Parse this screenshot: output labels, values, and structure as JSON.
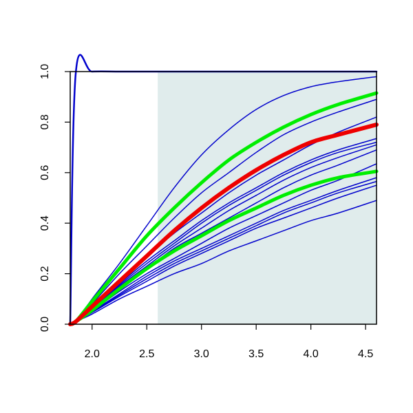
{
  "chart_data": {
    "type": "line",
    "title": "",
    "xlabel": "",
    "ylabel": "",
    "xlim": [
      1.8,
      4.6
    ],
    "ylim": [
      0.0,
      1.0
    ],
    "x_ticks": [
      "2.0",
      "2.5",
      "3.0",
      "3.5",
      "4.0",
      "4.5"
    ],
    "y_ticks": [
      "0.0",
      "0.2",
      "0.4",
      "0.6",
      "0.8",
      "1.0"
    ],
    "grid": false,
    "legend": "none",
    "shaded_region": {
      "x_from": 2.6,
      "x_to": 4.6,
      "color": "#e0ecec"
    },
    "x": [
      1.8,
      1.85,
      2.0,
      2.25,
      2.5,
      2.75,
      3.0,
      3.25,
      3.5,
      3.75,
      4.0,
      4.25,
      4.6
    ],
    "series": [
      {
        "color": "#0000cc",
        "width": 2.5,
        "values": [
          0.0,
          0.99,
          1.0,
          1.0,
          1.0,
          1.0,
          1.0,
          1.0,
          1.0,
          1.0,
          1.0,
          1.0,
          1.0
        ]
      },
      {
        "color": "#0000cc",
        "width": 1.5,
        "values": [
          0.0,
          0.01,
          0.1,
          0.24,
          0.39,
          0.54,
          0.67,
          0.77,
          0.85,
          0.905,
          0.94,
          0.96,
          0.98
        ]
      },
      {
        "color": "#0000cc",
        "width": 1.5,
        "values": [
          0.0,
          0.01,
          0.08,
          0.2,
          0.31,
          0.42,
          0.52,
          0.6,
          0.68,
          0.75,
          0.8,
          0.84,
          0.89
        ]
      },
      {
        "color": "#0000cc",
        "width": 1.5,
        "values": [
          0.0,
          0.01,
          0.07,
          0.17,
          0.27,
          0.36,
          0.44,
          0.52,
          0.59,
          0.65,
          0.71,
          0.76,
          0.82
        ]
      },
      {
        "color": "#0000cc",
        "width": 1.5,
        "values": [
          0.0,
          0.01,
          0.065,
          0.16,
          0.25,
          0.33,
          0.41,
          0.48,
          0.54,
          0.6,
          0.65,
          0.69,
          0.735
        ]
      },
      {
        "color": "#0000cc",
        "width": 1.5,
        "values": [
          0.0,
          0.01,
          0.062,
          0.155,
          0.24,
          0.32,
          0.4,
          0.47,
          0.53,
          0.59,
          0.64,
          0.68,
          0.72
        ]
      },
      {
        "color": "#0000cc",
        "width": 1.5,
        "values": [
          0.0,
          0.01,
          0.06,
          0.15,
          0.23,
          0.31,
          0.38,
          0.45,
          0.51,
          0.57,
          0.62,
          0.66,
          0.71
        ]
      },
      {
        "color": "#0000cc",
        "width": 1.5,
        "values": [
          0.0,
          0.01,
          0.058,
          0.145,
          0.22,
          0.3,
          0.36,
          0.42,
          0.48,
          0.54,
          0.59,
          0.63,
          0.69
        ]
      },
      {
        "color": "#0000cc",
        "width": 1.5,
        "values": [
          0.0,
          0.01,
          0.052,
          0.13,
          0.2,
          0.26,
          0.32,
          0.38,
          0.43,
          0.48,
          0.53,
          0.57,
          0.635
        ]
      },
      {
        "color": "#0000cc",
        "width": 1.5,
        "values": [
          0.0,
          0.01,
          0.05,
          0.12,
          0.19,
          0.25,
          0.3,
          0.35,
          0.4,
          0.45,
          0.49,
          0.53,
          0.58
        ]
      },
      {
        "color": "#0000cc",
        "width": 1.5,
        "values": [
          0.0,
          0.01,
          0.048,
          0.115,
          0.18,
          0.24,
          0.29,
          0.34,
          0.39,
          0.44,
          0.48,
          0.52,
          0.565
        ]
      },
      {
        "color": "#0000cc",
        "width": 1.5,
        "values": [
          0.0,
          0.01,
          0.046,
          0.11,
          0.17,
          0.23,
          0.28,
          0.33,
          0.38,
          0.42,
          0.46,
          0.5,
          0.55
        ]
      },
      {
        "color": "#0000cc",
        "width": 1.5,
        "values": [
          0.0,
          0.01,
          0.04,
          0.1,
          0.15,
          0.2,
          0.24,
          0.29,
          0.33,
          0.37,
          0.41,
          0.44,
          0.49
        ]
      },
      {
        "color": "#00ee00",
        "width": 5,
        "values": [
          0.0,
          0.01,
          0.09,
          0.22,
          0.35,
          0.46,
          0.56,
          0.65,
          0.72,
          0.78,
          0.83,
          0.87,
          0.915
        ]
      },
      {
        "color": "#00ee00",
        "width": 5,
        "values": [
          0.0,
          0.01,
          0.055,
          0.14,
          0.22,
          0.29,
          0.35,
          0.41,
          0.46,
          0.51,
          0.55,
          0.58,
          0.605
        ]
      },
      {
        "color": "#ee0000",
        "width": 6,
        "values": [
          0.0,
          0.01,
          0.07,
          0.17,
          0.27,
          0.37,
          0.46,
          0.54,
          0.61,
          0.67,
          0.72,
          0.75,
          0.79
        ]
      }
    ]
  }
}
